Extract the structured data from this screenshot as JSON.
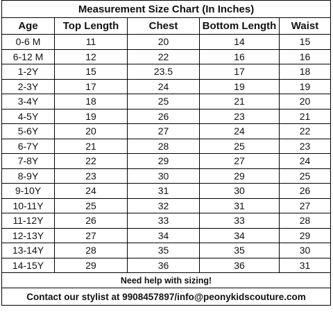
{
  "title": "Measurement Size Chart (In Inches)",
  "columns": [
    "Age",
    "Top Length",
    "Chest",
    "Bottom Length",
    "Waist"
  ],
  "rows": [
    [
      "0-6 M",
      "11",
      "20",
      "14",
      "15"
    ],
    [
      "6-12 M",
      "12",
      "22",
      "16",
      "16"
    ],
    [
      "1-2Y",
      "15",
      "23.5",
      "17",
      "18"
    ],
    [
      "2-3Y",
      "17",
      "24",
      "19",
      "19"
    ],
    [
      "3-4Y",
      "18",
      "25",
      "21",
      "20"
    ],
    [
      "4-5Y",
      "19",
      "26",
      "23",
      "21"
    ],
    [
      "5-6Y",
      "20",
      "27",
      "24",
      "22"
    ],
    [
      "6-7Y",
      "21",
      "28",
      "25",
      "23"
    ],
    [
      "7-8Y",
      "22",
      "29",
      "27",
      "24"
    ],
    [
      "8-9Y",
      "23",
      "30",
      "29",
      "25"
    ],
    [
      "9-10Y",
      "24",
      "31",
      "30",
      "26"
    ],
    [
      "10-11Y",
      "25",
      "32",
      "31",
      "27"
    ],
    [
      "11-12Y",
      "26",
      "33",
      "33",
      "28"
    ],
    [
      "12-13Y",
      "27",
      "34",
      "34",
      "29"
    ],
    [
      "13-14Y",
      "28",
      "35",
      "35",
      "30"
    ],
    [
      "14-15Y",
      "29",
      "36",
      "36",
      "31"
    ]
  ],
  "help_text": "Need help with sizing!",
  "contact_text": "Contact our stylist at 9908457897/info@peonykidscouture.com"
}
